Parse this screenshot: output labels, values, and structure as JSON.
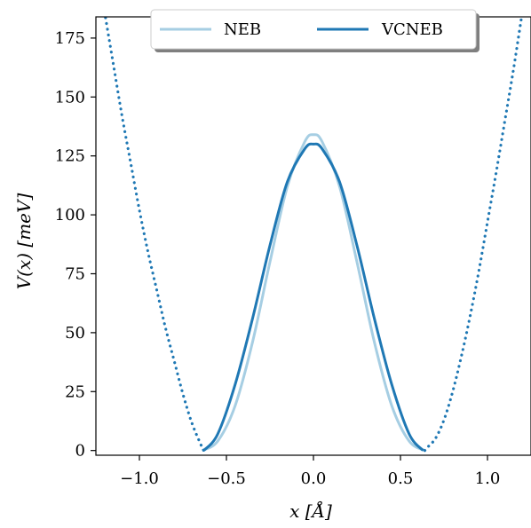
{
  "chart_data": {
    "type": "line",
    "title": "",
    "xlabel": "x [Å]",
    "ylabel": "V(x) [meV]",
    "xlim": [
      -1.25,
      1.25
    ],
    "ylim": [
      -2,
      184
    ],
    "xticks": [
      -1.0,
      -0.5,
      0.0,
      0.5,
      1.0
    ],
    "xtick_labels": [
      "−1.0",
      "−0.5",
      "0.0",
      "0.5",
      "1.0"
    ],
    "yticks": [
      0,
      25,
      50,
      75,
      100,
      125,
      150,
      175
    ],
    "ytick_labels": [
      "0",
      "25",
      "50",
      "75",
      "100",
      "125",
      "150",
      "175"
    ],
    "grid": false,
    "legend": {
      "placement": "top-center",
      "entries": [
        {
          "label": "NEB",
          "color": "#a6cee3"
        },
        {
          "label": "VCNEB",
          "color": "#1f78b4"
        }
      ]
    },
    "series": [
      {
        "name": "NEB",
        "style": "solid",
        "color": "#a6cee3",
        "x": [
          -0.64,
          -0.55,
          -0.45,
          -0.35,
          -0.25,
          -0.15,
          -0.05,
          0.0,
          0.05,
          0.15,
          0.25,
          0.35,
          0.45,
          0.55,
          0.64
        ],
        "y": [
          0,
          4,
          19,
          46,
          80,
          112,
          131,
          134,
          131,
          112,
          80,
          46,
          19,
          4,
          0
        ]
      },
      {
        "name": "VCNEB",
        "style": "solid",
        "color": "#1f78b4",
        "x": [
          -0.63,
          -0.55,
          -0.45,
          -0.35,
          -0.25,
          -0.15,
          -0.05,
          0.0,
          0.05,
          0.15,
          0.25,
          0.35,
          0.45,
          0.55,
          0.63
        ],
        "y": [
          0,
          7,
          28,
          56,
          87,
          114,
          128,
          130,
          128,
          114,
          87,
          56,
          28,
          7,
          0
        ]
      },
      {
        "style": "dotted",
        "color": "#1f78b4",
        "x": [
          -1.2,
          -1.15,
          -1.1,
          -1.05,
          -1.0,
          -0.95,
          -0.9,
          -0.85,
          -0.8,
          -0.75,
          -0.7,
          -0.65,
          -0.63
        ],
        "y": [
          186,
          164,
          142,
          122,
          102,
          84,
          68,
          52,
          38,
          24,
          12,
          3,
          0
        ]
      },
      {
        "style": "dotted",
        "color": "#1f78b4",
        "x": [
          0.64,
          0.65,
          0.7,
          0.75,
          0.8,
          0.85,
          0.9,
          0.95,
          1.0,
          1.05,
          1.1,
          1.15,
          1.2
        ],
        "y": [
          0,
          1,
          5,
          13,
          25,
          40,
          57,
          76,
          97,
          118,
          140,
          162,
          186
        ]
      }
    ]
  }
}
